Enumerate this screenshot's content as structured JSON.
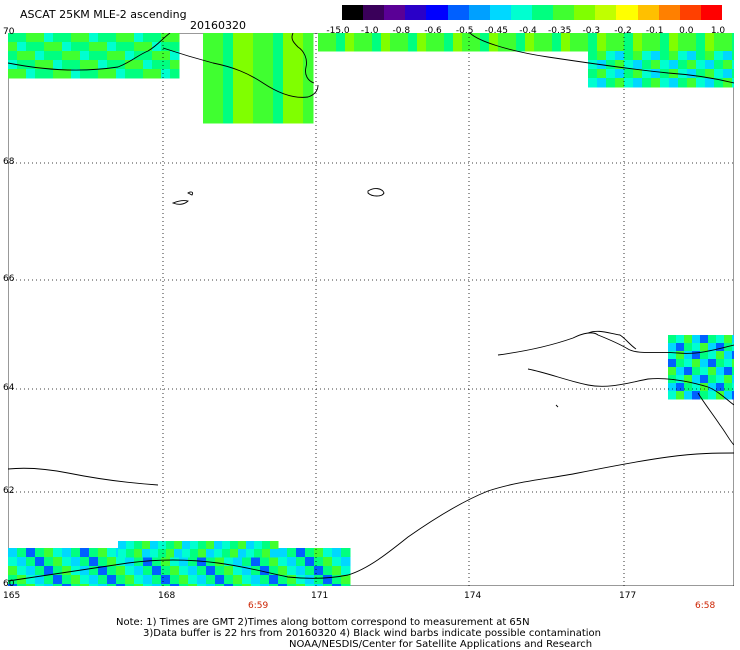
{
  "header": {
    "title": "ASCAT 25KM MLE-2 ascending",
    "date": "20160320"
  },
  "colorbar": {
    "labels": [
      "-15.0",
      "-1.0",
      "-0.8",
      "-0.6",
      "-0.5",
      "-0.45",
      "-0.4",
      "-0.35",
      "-0.3",
      "-0.2",
      "-0.1",
      "0.0",
      "1.0"
    ],
    "colors": [
      "#000000",
      "#3a005a",
      "#5a0096",
      "#2a00c8",
      "#0000ff",
      "#0060ff",
      "#00a0ff",
      "#00d8ff",
      "#00ffd0",
      "#00ff80",
      "#40ff30",
      "#80ff00",
      "#c0ff00",
      "#ffff00",
      "#ffc000",
      "#ff8000",
      "#ff4000",
      "#ff0000"
    ]
  },
  "map": {
    "lat_labels": [
      "70",
      "68",
      "66",
      "64",
      "62",
      "60"
    ],
    "lon_labels": [
      "165",
      "168",
      "171",
      "174",
      "177"
    ],
    "time_labels": [
      "6:59",
      "6:58"
    ]
  },
  "notes": {
    "line1": "Note: 1) Times are GMT 2)Times along bottom correspond to measurement at 65N",
    "line2": "3)Data buffer is 22 hrs from 20160320 4) Black wind barbs indicate possible contamination",
    "line3": "NOAA/NESDIS/Center for Satellite Applications and Research"
  }
}
